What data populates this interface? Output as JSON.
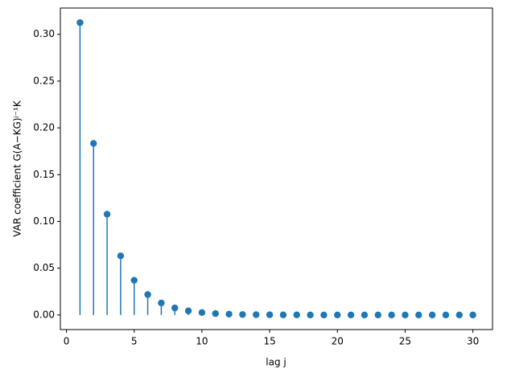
{
  "chart_data": {
    "type": "stem",
    "xlabel": "lag j",
    "ylabel": "VAR coefficient G(A−KG)ʲ⁻¹K",
    "color": "#1f77b4",
    "x": [
      1,
      2,
      3,
      4,
      5,
      6,
      7,
      8,
      9,
      10,
      11,
      12,
      13,
      14,
      15,
      16,
      17,
      18,
      19,
      20,
      21,
      22,
      23,
      24,
      25,
      26,
      27,
      28,
      29,
      30
    ],
    "values": [
      0.3125,
      0.1834,
      0.1077,
      0.0632,
      0.0371,
      0.0218,
      0.0128,
      0.0075,
      0.0044,
      0.0026,
      0.0015,
      0.0009,
      0.0005,
      0.0003,
      0.0002,
      0.0001,
      0.0001,
      0.0,
      0.0,
      0.0,
      0.0,
      0.0,
      0.0,
      0.0,
      0.0,
      0.0,
      0.0,
      0.0,
      0.0,
      0.0
    ],
    "xlim": [
      -0.45,
      31.45
    ],
    "ylim": [
      -0.0156,
      0.3281
    ],
    "xticks": [
      0,
      5,
      10,
      15,
      20,
      25,
      30
    ],
    "yticks": [
      {
        "value": 0,
        "label": "0.00"
      },
      {
        "value": 0.05,
        "label": "0.05"
      },
      {
        "value": 0.1,
        "label": "0.10"
      },
      {
        "value": 0.15,
        "label": "0.15"
      },
      {
        "value": 0.2,
        "label": "0.20"
      },
      {
        "value": 0.25,
        "label": "0.25"
      },
      {
        "value": 0.3,
        "label": "0.30"
      }
    ]
  }
}
